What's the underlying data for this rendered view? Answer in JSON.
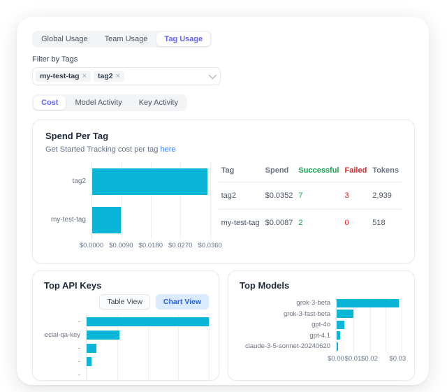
{
  "colors": {
    "bar_cyan": "#0ab5d8",
    "active_tab": "#6366f1",
    "success_green": "#16a34a",
    "failed_red": "#dc2626",
    "link_blue": "#3b82f6",
    "chart_view_bg": "#dbeafe"
  },
  "usage_tabs": {
    "items": [
      {
        "label": "Global Usage",
        "active": false
      },
      {
        "label": "Team Usage",
        "active": false
      },
      {
        "label": "Tag Usage",
        "active": true
      }
    ]
  },
  "filter": {
    "label": "Filter by Tags",
    "tags": [
      {
        "label": "my-test-tag",
        "remove": "×"
      },
      {
        "label": "tag2",
        "remove": "×"
      }
    ]
  },
  "view_tabs": {
    "items": [
      {
        "label": "Cost",
        "active": true
      },
      {
        "label": "Model Activity",
        "active": false
      },
      {
        "label": "Key Activity",
        "active": false
      }
    ]
  },
  "spend_per_tag": {
    "title": "Spend Per Tag",
    "subtitle": "Get Started Tracking cost per tag",
    "link_label": "here",
    "table": {
      "headers": [
        "Tag",
        "Spend",
        "Successful",
        "Failed",
        "Tokens"
      ],
      "rows": [
        {
          "tag": "tag2",
          "spend": "$0.0352",
          "successful": "7",
          "failed": "3",
          "tokens": "2,939"
        },
        {
          "tag": "my-test-tag",
          "spend": "$0.0087",
          "successful": "2",
          "failed": "0",
          "tokens": "518"
        }
      ]
    }
  },
  "top_api_keys": {
    "title": "Top API Keys",
    "table_view_label": "Table View",
    "chart_view_label": "Chart View"
  },
  "top_models": {
    "title": "Top Models"
  },
  "chart_data": [
    {
      "id": "spend_per_tag",
      "type": "bar",
      "orientation": "horizontal",
      "title": "Spend Per Tag",
      "categories": [
        "tag2",
        "my-test-tag"
      ],
      "values": [
        0.0352,
        0.0087
      ],
      "xlim": [
        0,
        0.036
      ],
      "tick_values": [
        0,
        0.009,
        0.018,
        0.027,
        0.036
      ],
      "ticks": [
        {
          "label": "$0.0000",
          "pos_pct": 0
        },
        {
          "label": "$0.0090",
          "pos_pct": 25
        },
        {
          "label": "$0.0180",
          "pos_pct": 50
        },
        {
          "label": "$0.0270",
          "pos_pct": 75
        },
        {
          "label": "$0.0360",
          "pos_pct": 100
        }
      ],
      "gridlines_pct": [
        25,
        50,
        75,
        100
      ],
      "bar_color": "#0ab5d8",
      "grid": true,
      "legend": false
    },
    {
      "id": "top_api_keys",
      "type": "bar",
      "orientation": "horizontal",
      "title": "Top API Keys",
      "categories": [
        "-",
        "pecial-qa-key",
        "-",
        "-",
        "-"
      ],
      "values_pct": [
        100,
        27,
        8,
        4,
        0
      ],
      "x_axis_visible": false,
      "gridlines_pct": [
        25,
        50,
        75,
        100
      ],
      "bar_color": "#0ab5d8",
      "grid": true,
      "legend": false
    },
    {
      "id": "top_models",
      "type": "bar",
      "orientation": "horizontal",
      "title": "Top Models",
      "categories": [
        "grok-3-beta",
        "grok-3-fast-beta",
        "gpt-4o",
        "gpt-4.1",
        "claude-3-5-sonnet-20240620"
      ],
      "values": [
        0.0295,
        0.0081,
        0.0038,
        0.0016,
        0.0007
      ],
      "xlim": [
        0,
        0.0315
      ],
      "tick_values": [
        0,
        0.01,
        0.02,
        0.03
      ],
      "ticks": [
        {
          "label": "$0.00",
          "pos_pct": 0
        },
        {
          "label": "$0.01",
          "pos_pct": 25.5
        },
        {
          "label": "$0.02",
          "pos_pct": 50
        },
        {
          "label": "$0.03",
          "pos_pct": 92
        }
      ],
      "gridlines_pct": [
        25.5,
        50,
        74,
        98
      ],
      "bar_color": "#0ab5d8",
      "grid": true,
      "legend": false
    }
  ]
}
